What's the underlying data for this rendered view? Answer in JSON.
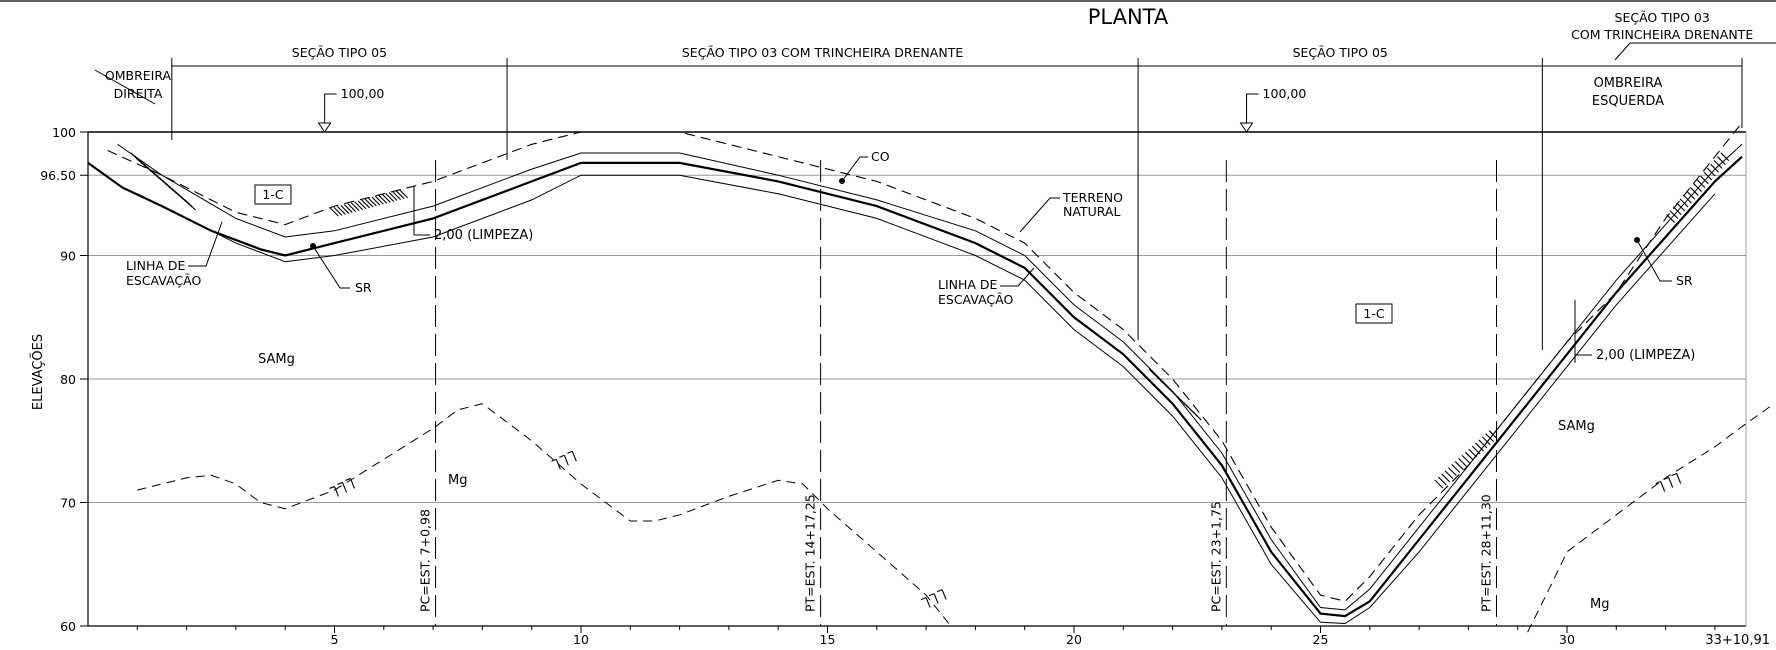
{
  "title": "PLANTA",
  "y_axis": {
    "label": "ELEVAÇÕES",
    "ticks": [
      {
        "value": 100,
        "text": "100"
      },
      {
        "value": 96.5,
        "text": "96.50"
      },
      {
        "value": 90,
        "text": "90"
      },
      {
        "value": 80,
        "text": "80"
      },
      {
        "value": 70,
        "text": "70"
      },
      {
        "value": 60,
        "text": "60"
      }
    ]
  },
  "x_axis": {
    "ticks": [
      {
        "value": 5,
        "text": "5"
      },
      {
        "value": 10,
        "text": "10"
      },
      {
        "value": 15,
        "text": "15"
      },
      {
        "value": 20,
        "text": "20"
      },
      {
        "value": 25,
        "text": "25"
      },
      {
        "value": 30,
        "text": "30"
      }
    ],
    "end_label": "33+10,91"
  },
  "sections": [
    {
      "label": "SEÇÃO TIPO 05",
      "from": 1.7,
      "to": 8.5
    },
    {
      "label": "SEÇÃO TIPO 03 COM TRINCHEIRA DRENANTE",
      "from": 8.5,
      "to": 21.3
    },
    {
      "label": "SEÇÃO TIPO 05",
      "from": 21.3,
      "to": 29.5
    },
    {
      "label": "SEÇÃO TIPO 03",
      "label2": "COM TRINCHEIRA DRENANTE",
      "from": 29.5,
      "to": 33.55
    }
  ],
  "abutments": {
    "right": [
      "OMBREIRA",
      "DIREITA"
    ],
    "left": [
      "OMBREIRA",
      "ESQUERDA"
    ]
  },
  "crest_markers": [
    {
      "text": "100,00",
      "x": 4.8,
      "elev": 100
    },
    {
      "text": "100,00",
      "x": 23.5,
      "elev": 100
    }
  ],
  "stations": [
    {
      "text": "PC=EST. 7+0,98",
      "x": 7.05
    },
    {
      "text": "PT=EST. 14+17,25",
      "x": 14.86
    },
    {
      "text": "PC=EST. 23+1,75",
      "x": 23.09
    },
    {
      "text": "PT=EST. 28+11,30",
      "x": 28.57
    }
  ],
  "annotations": {
    "limpeza_left": "2,00 (LIMPEZA)",
    "limpeza_right": "2,00 (LIMPEZA)",
    "linha_escavacao_left": [
      "LINHA DE",
      "ESCAVAÇÃO"
    ],
    "linha_escavacao_mid": [
      "LINHA DE",
      "ESCAVAÇÃO"
    ],
    "terreno_natural": [
      "TERRENO",
      "NATURAL"
    ],
    "co": "CO",
    "sr_left": "SR",
    "sr_right": "SR",
    "box_left": "1-C",
    "box_right": "1-C",
    "samg_left": "SAMg",
    "samg_right": "SAMg",
    "mg_left": "Mg",
    "mg_right": "Mg"
  },
  "profiles": {
    "terreno_natural": [
      [
        0.4,
        98.5
      ],
      [
        1.5,
        96.5
      ],
      [
        3,
        93.5
      ],
      [
        4,
        92.5
      ],
      [
        5,
        94
      ],
      [
        7,
        96
      ],
      [
        9,
        99
      ],
      [
        10,
        100
      ],
      [
        12,
        100
      ],
      [
        14,
        98
      ],
      [
        16,
        96
      ],
      [
        18,
        93
      ],
      [
        19,
        91
      ],
      [
        20,
        87
      ],
      [
        21,
        84
      ],
      [
        22,
        80
      ],
      [
        23,
        75
      ],
      [
        24,
        68
      ],
      [
        25,
        62.5
      ],
      [
        25.5,
        62
      ],
      [
        26,
        64
      ],
      [
        27,
        69
      ],
      [
        28,
        73
      ],
      [
        29,
        78
      ],
      [
        30,
        83
      ],
      [
        31,
        87
      ],
      [
        32,
        93
      ],
      [
        33,
        98
      ],
      [
        33.5,
        100.5
      ]
    ],
    "linha_escavacao": [
      [
        0,
        97.5
      ],
      [
        0.7,
        95.5
      ],
      [
        1.5,
        94
      ],
      [
        2.5,
        92
      ],
      [
        3.5,
        90.5
      ],
      [
        4,
        90
      ],
      [
        5,
        91
      ],
      [
        7,
        93
      ],
      [
        9,
        96
      ],
      [
        10,
        97.5
      ],
      [
        12,
        97.5
      ],
      [
        14,
        96
      ],
      [
        16,
        94
      ],
      [
        18,
        91
      ],
      [
        19,
        89
      ],
      [
        20,
        85
      ],
      [
        21,
        82
      ],
      [
        22,
        78
      ],
      [
        23,
        73
      ],
      [
        24,
        66
      ],
      [
        25,
        61
      ],
      [
        25.5,
        60.8
      ],
      [
        26,
        62
      ],
      [
        27,
        67
      ],
      [
        28,
        72
      ],
      [
        29,
        77
      ],
      [
        30,
        82
      ],
      [
        31,
        87
      ],
      [
        32,
        91.5
      ],
      [
        33,
        96
      ],
      [
        33.55,
        98
      ]
    ],
    "inner_offset": [
      [
        0.6,
        99
      ],
      [
        1.5,
        96.5
      ],
      [
        3,
        93
      ],
      [
        4,
        91.5
      ],
      [
        5,
        92
      ],
      [
        7,
        94
      ],
      [
        9,
        97
      ],
      [
        10,
        98.3
      ],
      [
        12,
        98.3
      ],
      [
        14,
        96.5
      ],
      [
        16,
        94.5
      ],
      [
        18,
        92
      ],
      [
        19,
        90
      ],
      [
        20,
        86
      ],
      [
        21,
        83
      ],
      [
        22,
        79
      ],
      [
        23,
        74
      ],
      [
        24,
        67
      ],
      [
        25,
        61.5
      ],
      [
        25.5,
        61.3
      ],
      [
        26,
        63
      ],
      [
        27,
        68
      ],
      [
        28,
        73
      ],
      [
        29,
        78
      ],
      [
        30,
        83
      ],
      [
        31,
        88
      ],
      [
        32,
        92.5
      ],
      [
        33,
        97
      ],
      [
        33.55,
        99
      ]
    ],
    "outer_offset": [
      [
        1,
        95
      ],
      [
        2,
        93
      ],
      [
        3,
        91
      ],
      [
        4,
        89.5
      ],
      [
        5,
        90
      ],
      [
        7,
        91.5
      ],
      [
        9,
        94.5
      ],
      [
        10,
        96.5
      ],
      [
        12,
        96.5
      ],
      [
        14,
        95
      ],
      [
        16,
        93
      ],
      [
        18,
        90
      ],
      [
        19,
        88
      ],
      [
        20,
        84
      ],
      [
        21,
        81
      ],
      [
        22,
        77
      ],
      [
        23,
        72
      ],
      [
        24,
        65
      ],
      [
        25,
        60.3
      ],
      [
        25.5,
        60.2
      ],
      [
        26,
        61.5
      ],
      [
        27,
        66
      ],
      [
        28,
        71
      ],
      [
        29,
        76
      ],
      [
        30,
        81
      ],
      [
        31,
        86
      ],
      [
        32,
        90.5
      ],
      [
        33,
        95
      ]
    ],
    "rock_line": [
      [
        1,
        71
      ],
      [
        2,
        72
      ],
      [
        2.5,
        72.2
      ],
      [
        3,
        71.5
      ],
      [
        3.5,
        70
      ],
      [
        4,
        69.5
      ],
      [
        5,
        71
      ],
      [
        6,
        73.5
      ],
      [
        7,
        76
      ],
      [
        7.5,
        77.5
      ],
      [
        8,
        78
      ],
      [
        9,
        75
      ],
      [
        10,
        71.5
      ],
      [
        11,
        68.5
      ],
      [
        11.5,
        68.5
      ],
      [
        12,
        69
      ],
      [
        13,
        70.5
      ],
      [
        14,
        71.8
      ],
      [
        14.5,
        71.5
      ],
      [
        15,
        69.5
      ],
      [
        16,
        66
      ],
      [
        17,
        62.5
      ],
      [
        17.5,
        60
      ]
    ],
    "rock_line_right": [
      [
        29.2,
        59.5
      ],
      [
        29.7,
        63.5
      ],
      [
        30,
        66
      ],
      [
        30.5,
        67.5
      ],
      [
        31,
        69
      ],
      [
        32,
        72
      ],
      [
        33,
        74.5
      ],
      [
        33.5,
        76
      ],
      [
        34.2,
        78
      ]
    ]
  }
}
